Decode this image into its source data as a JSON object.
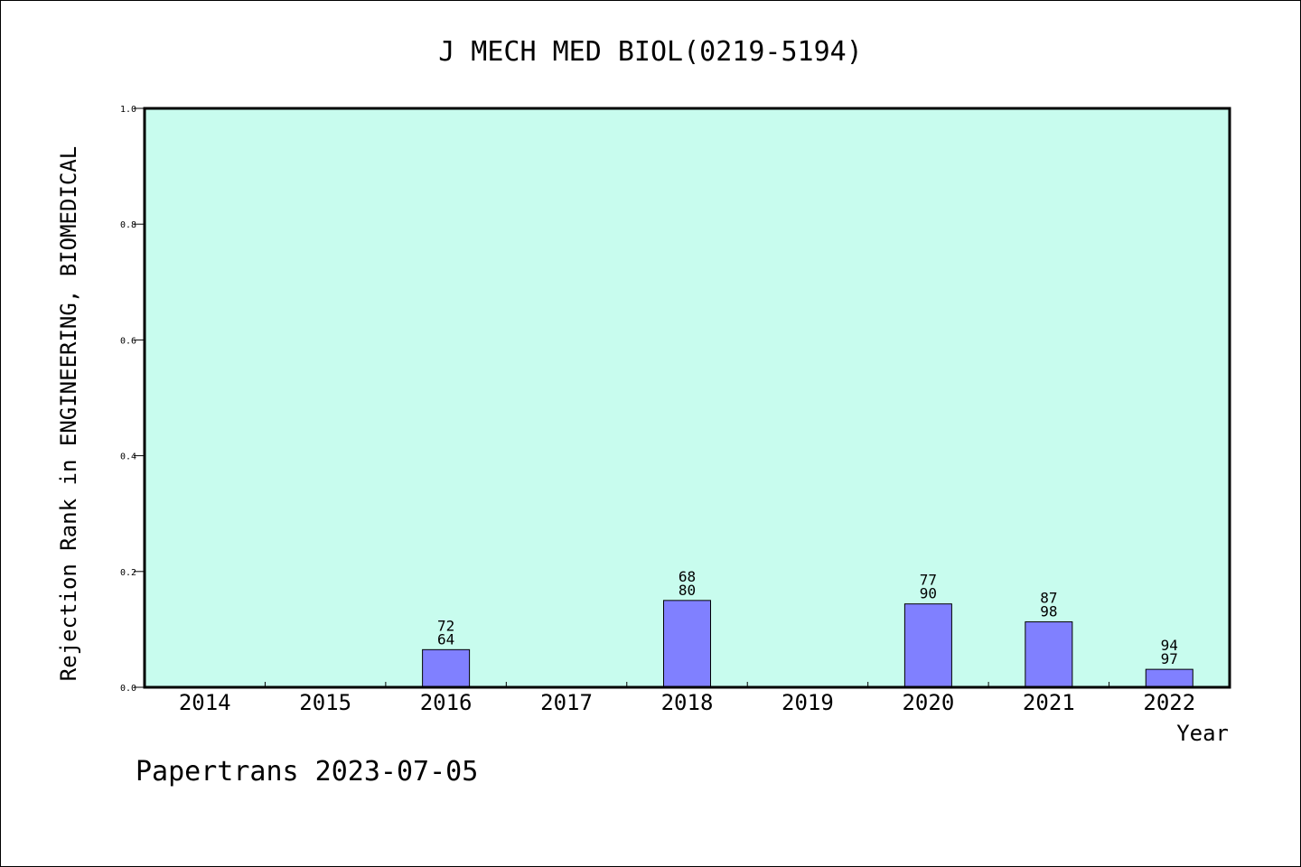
{
  "chart_data": {
    "type": "bar",
    "title": "J MECH MED BIOL(0219-5194)",
    "xlabel": "Year",
    "ylabel": "Rejection Rank in ENGINEERING, BIOMEDICAL",
    "ylim": [
      0,
      1.0
    ],
    "yticks": [
      "0.0",
      "0.2",
      "0.4",
      "0.6",
      "0.8",
      "1.0"
    ],
    "categories": [
      "2014",
      "2015",
      "2016",
      "2017",
      "2018",
      "2019",
      "2020",
      "2021",
      "2022"
    ],
    "values": [
      null,
      null,
      0.065,
      null,
      0.15,
      null,
      0.144,
      0.113,
      0.031
    ],
    "bar_labels_top": [
      "",
      "",
      "72",
      "",
      "68",
      "",
      "77",
      "87",
      "94"
    ],
    "bar_labels_bottom": [
      "",
      "",
      "64",
      "",
      "80",
      "",
      "90",
      "98",
      "97"
    ],
    "plot_background": "#c8fcee",
    "bar_color": "#8080ff",
    "grid": false
  },
  "footer": {
    "text": "Papertrans 2023-07-05"
  }
}
